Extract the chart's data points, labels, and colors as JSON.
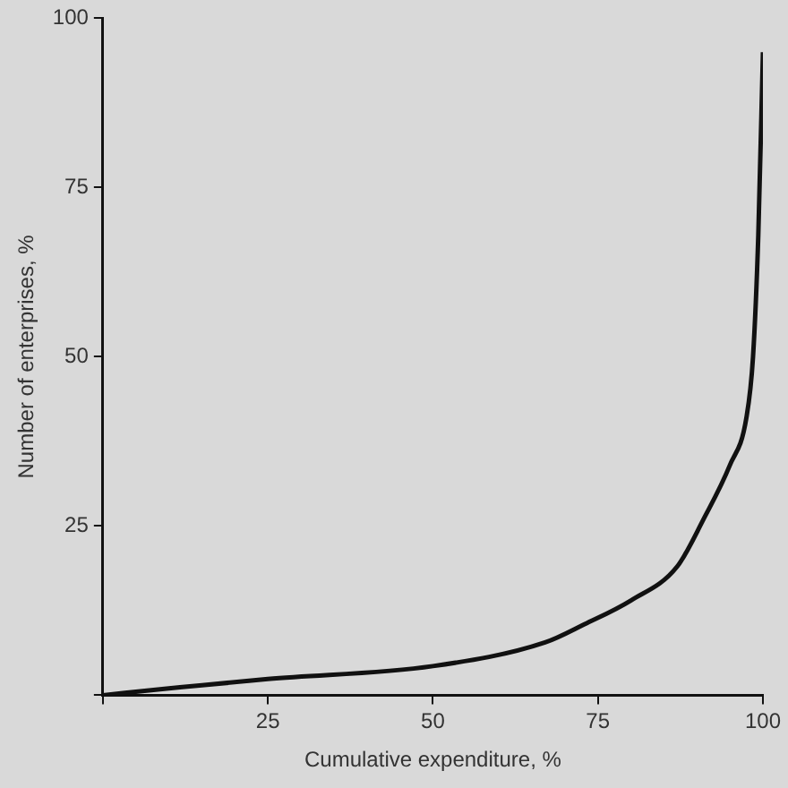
{
  "chart_data": {
    "type": "line",
    "xlabel": "Cumulative expenditure, %",
    "ylabel": "Number of enterprises, %",
    "x": [
      0,
      10,
      25,
      50,
      67,
      73,
      80,
      87,
      91,
      95,
      97.5,
      98.5,
      99.3,
      100
    ],
    "series": [
      {
        "color": "#111111",
        "values": [
          0,
          1,
          2.4,
          4.3,
          7.8,
          10.5,
          14,
          19,
          26,
          34,
          41,
          50,
          68,
          95
        ]
      }
    ],
    "xlim": [
      0,
      100
    ],
    "xticks": [
      {
        "value": 0,
        "label": null
      },
      25,
      50,
      75,
      100
    ],
    "ylim": [
      0,
      100
    ],
    "yticks": [
      {
        "value": 0,
        "label": null
      },
      25,
      50,
      75,
      100
    ],
    "grid": false,
    "legend": false,
    "marker": "none",
    "line_style": "solid"
  }
}
